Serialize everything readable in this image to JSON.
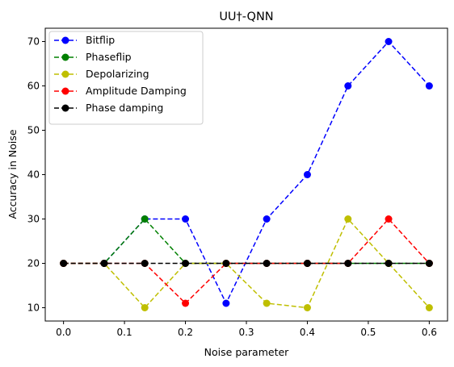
{
  "chart_data": {
    "type": "line",
    "title": "UU†-QNN",
    "xlabel": "Noise parameter",
    "ylabel": "Accuracy in Noise",
    "xlim": [
      -0.03,
      0.63
    ],
    "ylim": [
      7,
      73
    ],
    "x_ticks": [
      0.0,
      0.1,
      0.2,
      0.3,
      0.4,
      0.5,
      0.6
    ],
    "x_tick_labels": [
      "0.0",
      "0.1",
      "0.2",
      "0.3",
      "0.4",
      "0.5",
      "0.6"
    ],
    "y_ticks": [
      10,
      20,
      30,
      40,
      50,
      60,
      70
    ],
    "y_tick_labels": [
      "10",
      "20",
      "30",
      "40",
      "50",
      "60",
      "70"
    ],
    "grid": false,
    "legend_position": "top-left",
    "line_style": "dashed",
    "marker": "circle",
    "x": [
      0.0,
      0.0667,
      0.1333,
      0.2,
      0.2667,
      0.3333,
      0.4,
      0.4667,
      0.5333,
      0.6
    ],
    "series": [
      {
        "name": "Bitflip",
        "color": "#0000ff",
        "values": [
          20,
          20,
          30,
          30,
          11,
          30,
          40,
          60,
          70,
          60
        ]
      },
      {
        "name": "Phaseflip",
        "color": "#008000",
        "values": [
          20,
          20,
          30,
          20,
          20,
          20,
          20,
          20,
          20,
          20
        ]
      },
      {
        "name": "Depolarizing",
        "color": "#bfbf00",
        "values": [
          20,
          20,
          10,
          20,
          20,
          11,
          10,
          30,
          20,
          10
        ]
      },
      {
        "name": "Amplitude Damping",
        "color": "#ff0000",
        "values": [
          20,
          20,
          20,
          11,
          20,
          20,
          20,
          20,
          30,
          20
        ]
      },
      {
        "name": "Phase damping",
        "color": "#000000",
        "values": [
          20,
          20,
          20,
          20,
          20,
          20,
          20,
          20,
          20,
          20
        ]
      }
    ]
  }
}
